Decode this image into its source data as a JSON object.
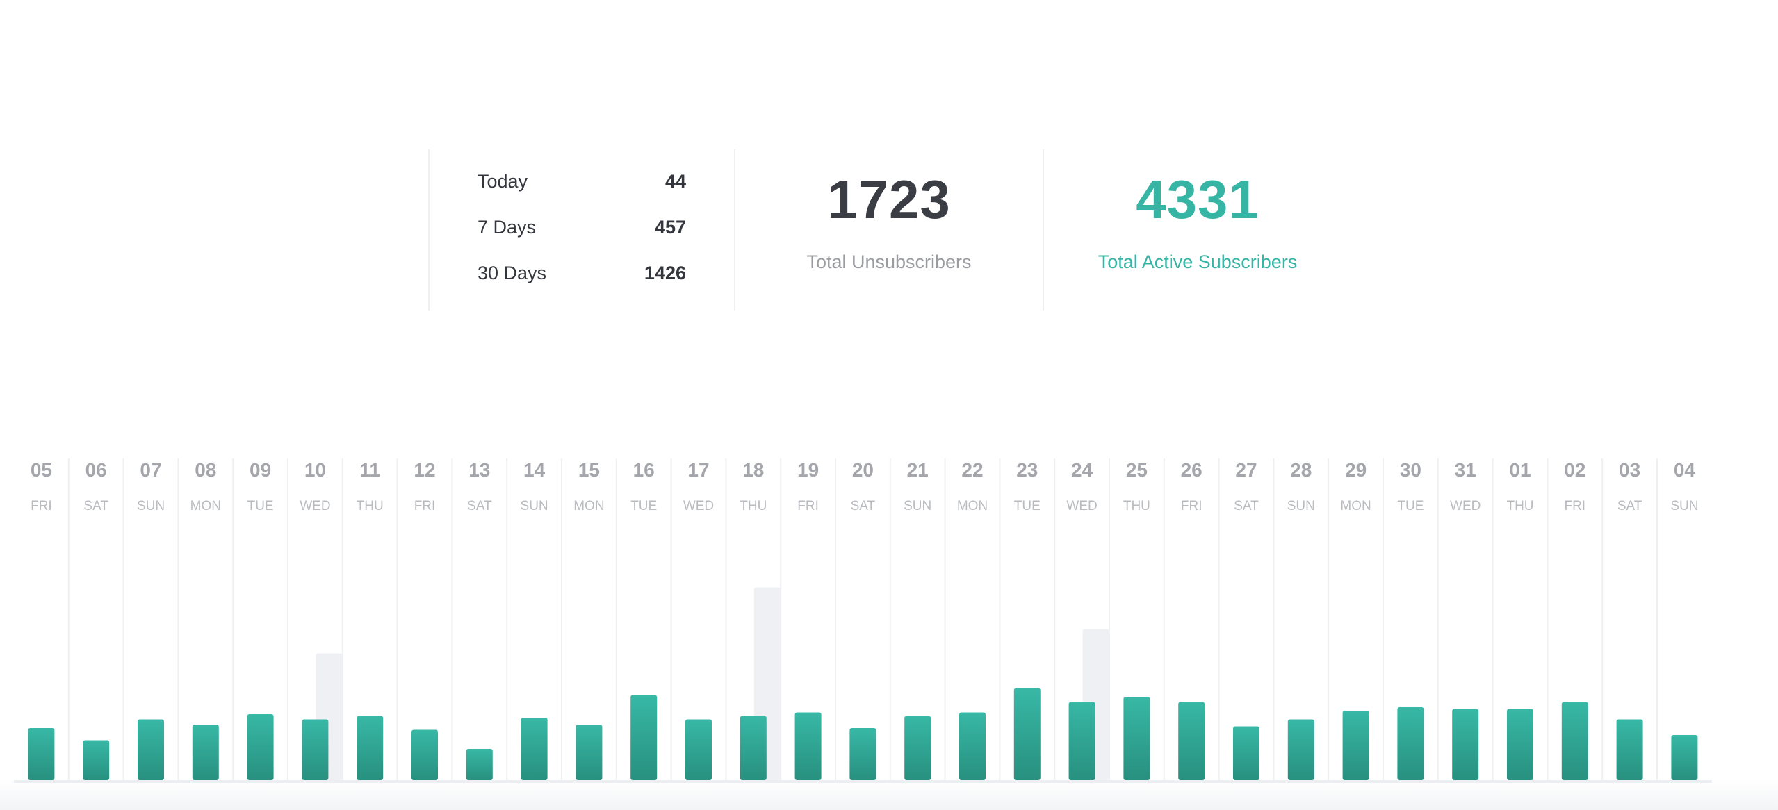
{
  "summary": {
    "periods": [
      {
        "label": "Today",
        "value": "44"
      },
      {
        "label": "7 Days",
        "value": "457"
      },
      {
        "label": "30 Days",
        "value": "1426"
      }
    ],
    "unsubscribers": {
      "value": "1723",
      "label": "Total Unsubscribers"
    },
    "active": {
      "value": "4331",
      "label": "Total Active Subscribers"
    }
  },
  "colors": {
    "accent": "#36b5a4",
    "accent_dark": "#2a9586",
    "muted_bar": "#eef0f3",
    "text_dark": "#33363c",
    "text_muted": "#9a9ca1"
  },
  "chart_data": {
    "type": "bar",
    "categories": [
      "05",
      "06",
      "07",
      "08",
      "09",
      "10",
      "11",
      "12",
      "13",
      "14",
      "15",
      "16",
      "17",
      "18",
      "19",
      "20",
      "21",
      "22",
      "23",
      "24",
      "25",
      "26",
      "27",
      "28",
      "29",
      "30",
      "31",
      "01",
      "02",
      "03",
      "04"
    ],
    "days": [
      "FRI",
      "SAT",
      "SUN",
      "MON",
      "TUE",
      "WED",
      "THU",
      "FRI",
      "SAT",
      "SUN",
      "MON",
      "TUE",
      "WED",
      "THU",
      "FRI",
      "SAT",
      "SUN",
      "MON",
      "TUE",
      "WED",
      "THU",
      "FRI",
      "SAT",
      "SUN",
      "MON",
      "TUE",
      "WED",
      "THU",
      "FRI",
      "SAT",
      "SUN"
    ],
    "series": [
      {
        "values": [
          30,
          23,
          35,
          32,
          38,
          35,
          37,
          29,
          18,
          36,
          32,
          49,
          35,
          37,
          39,
          30,
          37,
          39,
          53,
          45,
          48,
          45,
          31,
          35,
          40,
          42,
          41,
          41,
          45,
          35,
          26
        ]
      },
      {
        "values": [
          0,
          0,
          0,
          0,
          0,
          73,
          0,
          0,
          0,
          0,
          0,
          0,
          0,
          111,
          0,
          0,
          0,
          0,
          0,
          87,
          0,
          0,
          0,
          0,
          0,
          0,
          0,
          0,
          0,
          0,
          0
        ]
      }
    ],
    "ylim": [
      0,
      120
    ]
  }
}
